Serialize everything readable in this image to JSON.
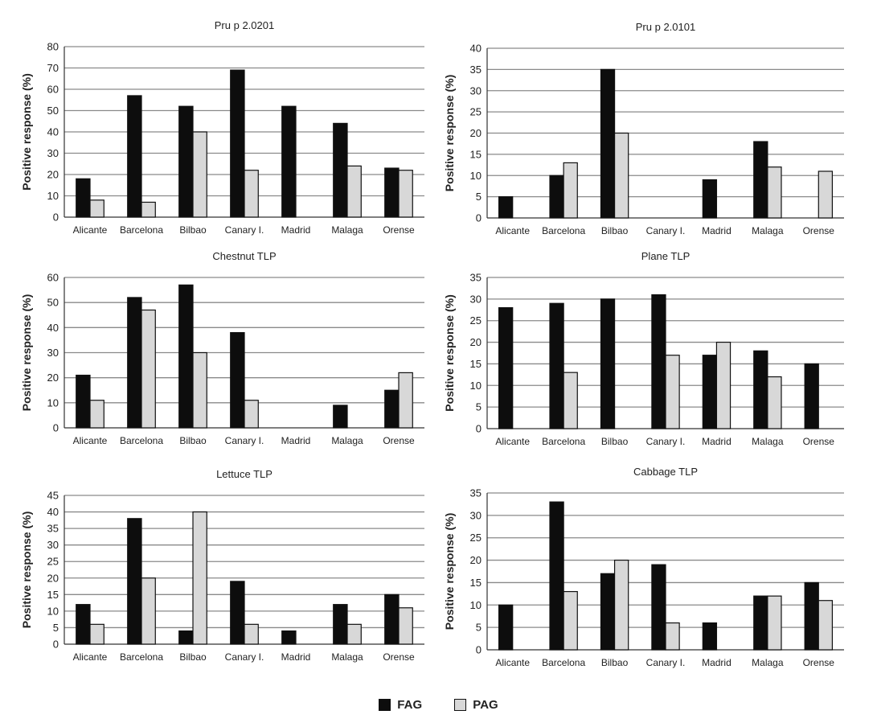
{
  "legend": {
    "fag": "FAG",
    "pag": "PAG"
  },
  "colors": {
    "fag": "#0d0d0d",
    "pag": "#d8d8d8",
    "outline": "#111111",
    "grid": "#8a8a8a"
  },
  "chart_data": [
    {
      "type": "bar",
      "title": "Pru p 2.0201",
      "ylabel": "Positive response (%)",
      "ylim": [
        0,
        80
      ],
      "ystep": 10,
      "categories": [
        "Alicante",
        "Barcelona",
        "Bilbao",
        "Canary I.",
        "Madrid",
        "Malaga",
        "Orense"
      ],
      "series": [
        {
          "name": "FAG",
          "values": [
            18,
            57,
            52,
            69,
            52,
            44,
            23
          ]
        },
        {
          "name": "PAG",
          "values": [
            8,
            7,
            40,
            22,
            0,
            24,
            22
          ]
        }
      ],
      "grid": true
    },
    {
      "type": "bar",
      "title": "Pru p 2.0101",
      "ylabel": "Positive response (%)",
      "ylim": [
        0,
        40
      ],
      "ystep": 5,
      "categories": [
        "Alicante",
        "Barcelona",
        "Bilbao",
        "Canary I.",
        "Madrid",
        "Malaga",
        "Orense"
      ],
      "series": [
        {
          "name": "FAG",
          "values": [
            5,
            10,
            35,
            0,
            9,
            18,
            0
          ]
        },
        {
          "name": "PAG",
          "values": [
            0,
            13,
            20,
            0,
            0,
            12,
            11
          ]
        }
      ],
      "grid": true
    },
    {
      "type": "bar",
      "title": "Chestnut TLP",
      "ylabel": "Positive response (%)",
      "ylim": [
        0,
        60
      ],
      "ystep": 10,
      "categories": [
        "Alicante",
        "Barcelona",
        "Bilbao",
        "Canary I.",
        "Madrid",
        "Malaga",
        "Orense"
      ],
      "series": [
        {
          "name": "FAG",
          "values": [
            21,
            52,
            57,
            38,
            0,
            9,
            15
          ]
        },
        {
          "name": "PAG",
          "values": [
            11,
            47,
            30,
            11,
            0,
            0,
            22
          ]
        }
      ],
      "grid": true
    },
    {
      "type": "bar",
      "title": "Plane TLP",
      "ylabel": "Positive response (%)",
      "ylim": [
        0,
        35
      ],
      "ystep": 5,
      "categories": [
        "Alicante",
        "Barcelona",
        "Bilbao",
        "Canary I.",
        "Madrid",
        "Malaga",
        "Orense"
      ],
      "series": [
        {
          "name": "FAG",
          "values": [
            28,
            29,
            30,
            31,
            17,
            18,
            15
          ]
        },
        {
          "name": "PAG",
          "values": [
            0,
            13,
            0,
            17,
            20,
            12,
            0
          ]
        }
      ],
      "grid": true
    },
    {
      "type": "bar",
      "title": "Lettuce TLP",
      "ylabel": "Positive response (%)",
      "ylim": [
        0,
        45
      ],
      "ystep": 5,
      "categories": [
        "Alicante",
        "Barcelona",
        "Bilbao",
        "Canary I.",
        "Madrid",
        "Malaga",
        "Orense"
      ],
      "series": [
        {
          "name": "FAG",
          "values": [
            12,
            38,
            4,
            19,
            4,
            12,
            15
          ]
        },
        {
          "name": "PAG",
          "values": [
            6,
            20,
            40,
            6,
            0,
            6,
            11
          ]
        }
      ],
      "grid": true
    },
    {
      "type": "bar",
      "title": "Cabbage TLP",
      "ylabel": "Positive response (%)",
      "ylim": [
        0,
        35
      ],
      "ystep": 5,
      "categories": [
        "Alicante",
        "Barcelona",
        "Bilbao",
        "Canary I.",
        "Madrid",
        "Malaga",
        "Orense"
      ],
      "series": [
        {
          "name": "FAG",
          "values": [
            10,
            33,
            17,
            19,
            6,
            12,
            15
          ]
        },
        {
          "name": "PAG",
          "values": [
            0,
            13,
            20,
            6,
            0,
            12,
            11
          ]
        }
      ],
      "grid": true
    }
  ]
}
